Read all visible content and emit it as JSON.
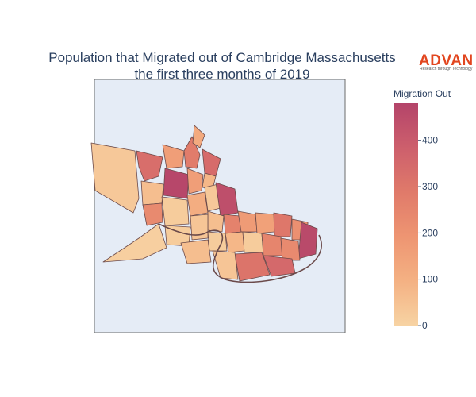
{
  "title": {
    "line1": "Population that Migrated out of Cambridge Massachusetts",
    "line2": "the first three months of 2019"
  },
  "logo": {
    "name": "ADVAN",
    "tagline": "Research through Technology"
  },
  "colorbar": {
    "title": "Migration Out",
    "ticks": [
      0,
      100,
      200,
      300,
      400
    ],
    "range": [
      0,
      480
    ],
    "colorscale": [
      "#f7d3a3",
      "#f4b183",
      "#ee9572",
      "#e07a6a",
      "#cd5f6c",
      "#b4446a"
    ]
  },
  "colors": {
    "map_background": "#e5ecf6",
    "boundary": "#6b4a4a",
    "text": "#2a3f5f"
  },
  "map": {
    "regions": [
      {
        "pts": [
          [
            115,
            180
          ],
          [
            170,
            190
          ],
          [
            175,
            250
          ],
          [
            168,
            268
          ],
          [
            120,
            240
          ]
        ],
        "v": 30
      },
      {
        "pts": [
          [
            172,
            190
          ],
          [
            205,
            198
          ],
          [
            200,
            222
          ],
          [
            182,
            228
          ],
          [
            175,
            210
          ]
        ],
        "v": 330
      },
      {
        "pts": [
          [
            205,
            182
          ],
          [
            232,
            190
          ],
          [
            230,
            210
          ],
          [
            210,
            212
          ]
        ],
        "v": 160
      },
      {
        "pts": [
          [
            232,
            190
          ],
          [
            242,
            172
          ],
          [
            252,
            195
          ],
          [
            248,
            212
          ],
          [
            234,
            210
          ]
        ],
        "v": 280
      },
      {
        "pts": [
          [
            245,
            158
          ],
          [
            258,
            170
          ],
          [
            252,
            186
          ],
          [
            243,
            180
          ]
        ],
        "v": 120
      },
      {
        "pts": [
          [
            255,
            188
          ],
          [
            278,
            200
          ],
          [
            272,
            222
          ],
          [
            258,
            218
          ]
        ],
        "v": 340
      },
      {
        "pts": [
          [
            258,
            218
          ],
          [
            272,
            222
          ],
          [
            268,
            238
          ],
          [
            255,
            236
          ]
        ],
        "v": 80
      },
      {
        "pts": [
          [
            208,
            212
          ],
          [
            238,
            220
          ],
          [
            236,
            250
          ],
          [
            206,
            246
          ]
        ],
        "v": 470
      },
      {
        "pts": [
          [
            236,
            212
          ],
          [
            256,
            220
          ],
          [
            254,
            240
          ],
          [
            238,
            244
          ]
        ],
        "v": 160
      },
      {
        "pts": [
          [
            178,
            228
          ],
          [
            206,
            232
          ],
          [
            204,
            256
          ],
          [
            180,
            258
          ]
        ],
        "v": 60
      },
      {
        "pts": [
          [
            180,
            258
          ],
          [
            204,
            256
          ],
          [
            205,
            280
          ],
          [
            185,
            284
          ]
        ],
        "v": 230
      },
      {
        "pts": [
          [
            204,
            248
          ],
          [
            236,
            252
          ],
          [
            238,
            282
          ],
          [
            208,
            284
          ]
        ],
        "v": 20
      },
      {
        "pts": [
          [
            236,
            246
          ],
          [
            258,
            242
          ],
          [
            262,
            268
          ],
          [
            240,
            272
          ]
        ],
        "v": 110
      },
      {
        "pts": [
          [
            258,
            236
          ],
          [
            275,
            232
          ],
          [
            278,
            262
          ],
          [
            262,
            266
          ]
        ],
        "v": 30
      },
      {
        "pts": [
          [
            272,
            230
          ],
          [
            296,
            238
          ],
          [
            300,
            268
          ],
          [
            278,
            272
          ]
        ],
        "v": 440
      },
      {
        "pts": [
          [
            262,
            266
          ],
          [
            282,
            272
          ],
          [
            280,
            292
          ],
          [
            262,
            290
          ]
        ],
        "v": 60
      },
      {
        "pts": [
          [
            240,
            272
          ],
          [
            262,
            270
          ],
          [
            262,
            300
          ],
          [
            242,
            302
          ]
        ],
        "v": 40
      },
      {
        "pts": [
          [
            208,
            284
          ],
          [
            240,
            286
          ],
          [
            238,
            310
          ],
          [
            210,
            308
          ]
        ],
        "v": 20
      },
      {
        "pts": [
          [
            282,
            270
          ],
          [
            302,
            272
          ],
          [
            305,
            292
          ],
          [
            284,
            294
          ]
        ],
        "v": 260
      },
      {
        "pts": [
          [
            300,
            266
          ],
          [
            322,
            270
          ],
          [
            324,
            292
          ],
          [
            304,
            292
          ]
        ],
        "v": 170
      },
      {
        "pts": [
          [
            322,
            268
          ],
          [
            346,
            270
          ],
          [
            346,
            292
          ],
          [
            324,
            294
          ]
        ],
        "v": 150
      },
      {
        "pts": [
          [
            345,
            268
          ],
          [
            368,
            272
          ],
          [
            366,
            298
          ],
          [
            346,
            298
          ]
        ],
        "v": 300
      },
      {
        "pts": [
          [
            368,
            276
          ],
          [
            388,
            280
          ],
          [
            388,
            302
          ],
          [
            368,
            302
          ]
        ],
        "v": 210
      },
      {
        "pts": [
          [
            380,
            280
          ],
          [
            400,
            288
          ],
          [
            398,
            320
          ],
          [
            376,
            326
          ]
        ],
        "v": 460
      },
      {
        "pts": [
          [
            262,
            292
          ],
          [
            284,
            294
          ],
          [
            286,
            316
          ],
          [
            264,
            316
          ]
        ],
        "v": 20
      },
      {
        "pts": [
          [
            284,
            294
          ],
          [
            306,
            292
          ],
          [
            308,
            316
          ],
          [
            288,
            318
          ]
        ],
        "v": 80
      },
      {
        "pts": [
          [
            306,
            292
          ],
          [
            330,
            294
          ],
          [
            332,
            318
          ],
          [
            308,
            318
          ]
        ],
        "v": 20
      },
      {
        "pts": [
          [
            330,
            294
          ],
          [
            354,
            298
          ],
          [
            356,
            322
          ],
          [
            332,
            322
          ]
        ],
        "v": 250
      },
      {
        "pts": [
          [
            354,
            300
          ],
          [
            376,
            304
          ],
          [
            378,
            328
          ],
          [
            356,
            328
          ]
        ],
        "v": 230
      },
      {
        "pts": [
          [
            296,
            320
          ],
          [
            330,
            318
          ],
          [
            340,
            346
          ],
          [
            302,
            354
          ]
        ],
        "v": 310
      },
      {
        "pts": [
          [
            332,
            322
          ],
          [
            368,
            326
          ],
          [
            372,
            344
          ],
          [
            342,
            348
          ]
        ],
        "v": 350
      },
      {
        "pts": [
          [
            268,
            316
          ],
          [
            296,
            318
          ],
          [
            300,
            352
          ],
          [
            278,
            350
          ]
        ],
        "v": 40
      },
      {
        "pts": [
          [
            228,
            306
          ],
          [
            262,
            302
          ],
          [
            266,
            330
          ],
          [
            236,
            332
          ]
        ],
        "v": 60
      },
      {
        "pts": [
          [
            130,
            330
          ],
          [
            175,
            300
          ],
          [
            200,
            282
          ],
          [
            210,
            312
          ],
          [
            180,
            326
          ]
        ],
        "v": 10
      }
    ]
  }
}
